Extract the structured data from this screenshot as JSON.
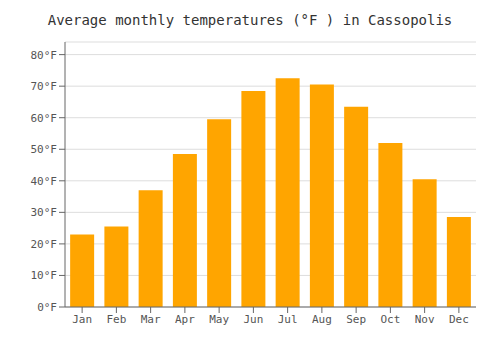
{
  "chart_data": {
    "type": "bar",
    "title": "Average monthly temperatures (°F ) in Cassopolis",
    "categories": [
      "Jan",
      "Feb",
      "Mar",
      "Apr",
      "May",
      "Jun",
      "Jul",
      "Aug",
      "Sep",
      "Oct",
      "Nov",
      "Dec"
    ],
    "values": [
      23,
      25.5,
      37,
      48.5,
      59.5,
      68.5,
      72.5,
      70.5,
      63.5,
      52,
      40.5,
      28.5
    ],
    "color": "#FFA500",
    "ylim": [
      0,
      84
    ],
    "yticks": [
      {
        "value": 0,
        "label": "0°F"
      },
      {
        "value": 10,
        "label": "10°F"
      },
      {
        "value": 20,
        "label": "20°F"
      },
      {
        "value": 30,
        "label": "30°F"
      },
      {
        "value": 40,
        "label": "40°F"
      },
      {
        "value": 50,
        "label": "50°F"
      },
      {
        "value": 60,
        "label": "60°F"
      },
      {
        "value": 70,
        "label": "70°F"
      },
      {
        "value": 80,
        "label": "80°F"
      }
    ],
    "grid": true
  }
}
